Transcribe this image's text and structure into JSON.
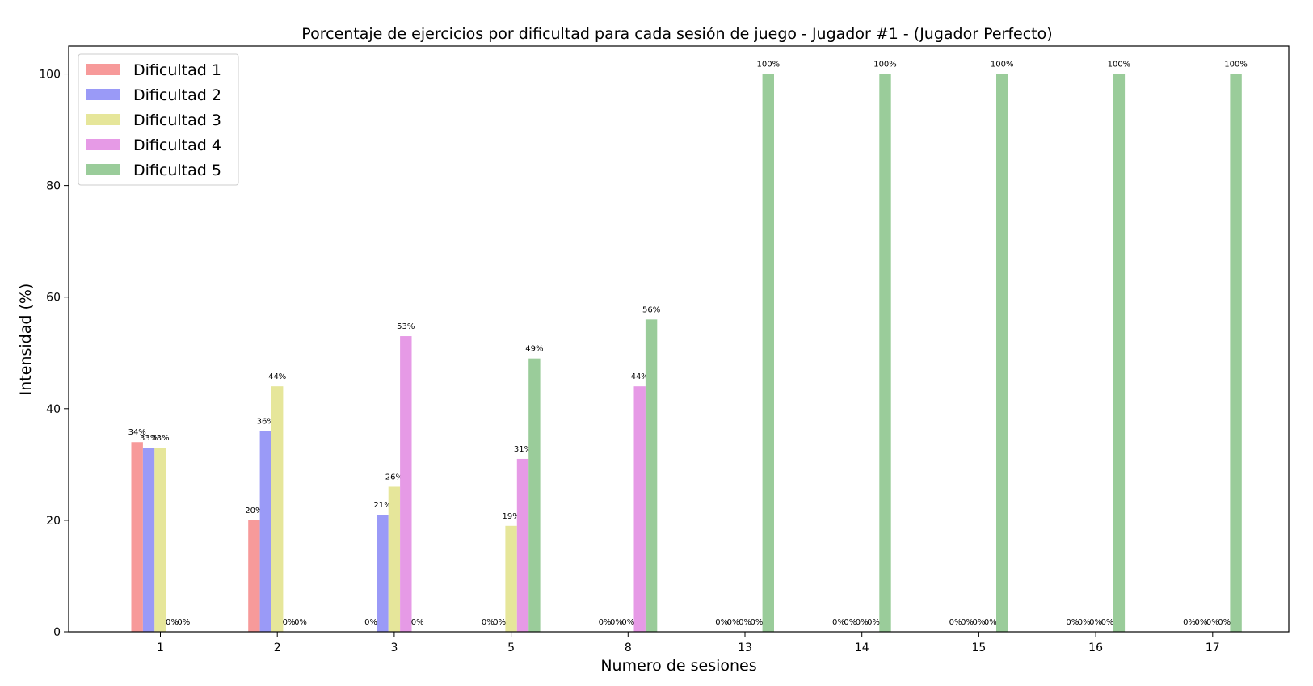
{
  "chart_data": {
    "type": "bar",
    "title": "Porcentaje de ejercicios por dificultad para cada sesión de juego - Jugador #1 - (Jugador Perfecto)",
    "xlabel": "Numero de sesiones",
    "ylabel": "Intensidad (%)",
    "categories": [
      "1",
      "2",
      "3",
      "5",
      "8",
      "13",
      "14",
      "15",
      "16",
      "17"
    ],
    "ylim": [
      0,
      105
    ],
    "yticks": [
      0,
      20,
      40,
      60,
      80,
      100
    ],
    "grid": false,
    "legend_position": "top-left",
    "series": [
      {
        "name": "Dificultad 1",
        "color": "#f79a9a",
        "values": [
          34,
          20,
          0,
          0,
          0,
          0,
          0,
          0,
          0,
          0
        ],
        "labels": [
          "34%",
          "20%",
          "0%",
          "0%",
          "0%",
          "0%",
          "0%",
          "0%",
          "0%",
          "0%"
        ]
      },
      {
        "name": "Dificultad 2",
        "color": "#9a9af7",
        "values": [
          33,
          36,
          21,
          0,
          0,
          0,
          0,
          0,
          0,
          0
        ],
        "labels": [
          "33%",
          "36%",
          "21%",
          "0%",
          "0%",
          "0%",
          "0%",
          "0%",
          "0%",
          "0%"
        ]
      },
      {
        "name": "Dificultad 3",
        "color": "#e6e69a",
        "values": [
          33,
          44,
          26,
          19,
          0,
          0,
          0,
          0,
          0,
          0
        ],
        "labels": [
          "33%",
          "44%",
          "26%",
          "19%",
          "0%",
          "0%",
          "0%",
          "0%",
          "0%",
          "0%"
        ]
      },
      {
        "name": "Dificultad 4",
        "color": "#e69ae6",
        "values": [
          0,
          0,
          53,
          31,
          44,
          0,
          0,
          0,
          0,
          0
        ],
        "labels": [
          "0%",
          "0%",
          "53%",
          "31%",
          "44%",
          "0%",
          "0%",
          "0%",
          "0%",
          "0%"
        ]
      },
      {
        "name": "Dificultad 5",
        "color": "#9acc9a",
        "values": [
          0,
          0,
          0,
          49,
          56,
          100,
          100,
          100,
          100,
          100
        ],
        "labels": [
          "0%",
          "0%",
          "0%",
          "49%",
          "56%",
          "100%",
          "100%",
          "100%",
          "100%",
          "100%"
        ]
      }
    ]
  }
}
